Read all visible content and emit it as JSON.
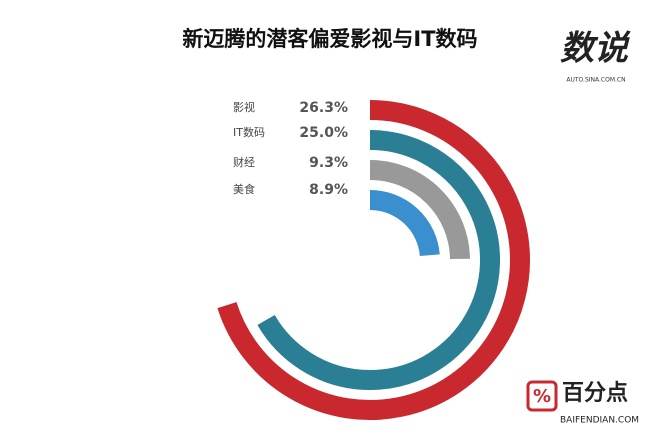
{
  "chart_data": {
    "type": "radial_bar",
    "title": "新迈腾的潜客偏爱影视与IT数码",
    "categories": [
      "影视",
      "IT数码",
      "财经",
      "美食"
    ],
    "values": [
      26.3,
      25.0,
      9.3,
      8.9
    ],
    "value_labels": [
      "26.3%",
      "25.0%",
      "9.3%",
      "8.9%"
    ],
    "colors": [
      "#c8282e",
      "#2a7f95",
      "#999999",
      "#3a8fcf"
    ],
    "ylim": [
      0,
      37.5
    ]
  },
  "logos": {
    "top_right": "数说",
    "top_right_sub": "AUTO.SINA.COM.CN",
    "bottom_right": "百分点",
    "bottom_right_sub": "BAIFENDIAN.COM"
  }
}
